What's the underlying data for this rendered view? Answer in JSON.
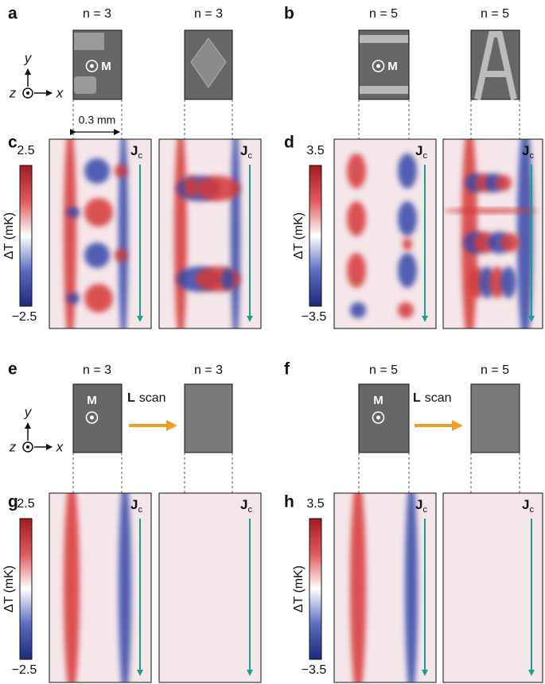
{
  "panel_labels": [
    "a",
    "b",
    "c",
    "d",
    "e",
    "f",
    "g",
    "h"
  ],
  "n_labels": [
    "n = 3",
    "n = 3",
    "n = 5",
    "n = 5",
    "n = 3",
    "n = 3",
    "n = 5",
    "n = 5"
  ],
  "axes_labels": {
    "x": "x",
    "y": "y",
    "z": "z"
  },
  "scale_bar": "0.3 mm",
  "marker": "M",
  "arrow_label": {
    "vector": "L",
    "text": "scan"
  },
  "current_label": {
    "symbol": "J",
    "subscript": "c"
  },
  "colorbars": [
    {
      "axis_label": "ΔT (mK)",
      "ticks": [
        "2.5",
        "−2.5"
      ]
    },
    {
      "axis_label": "ΔT (mK)",
      "ticks": [
        "3.5",
        "−3.5"
      ]
    },
    {
      "axis_label": "ΔT (mK)",
      "ticks": [
        "2.5",
        "−2.5"
      ]
    },
    {
      "axis_label": "ΔT (mK)",
      "ticks": [
        "3.5",
        "−3.5"
      ]
    }
  ]
}
